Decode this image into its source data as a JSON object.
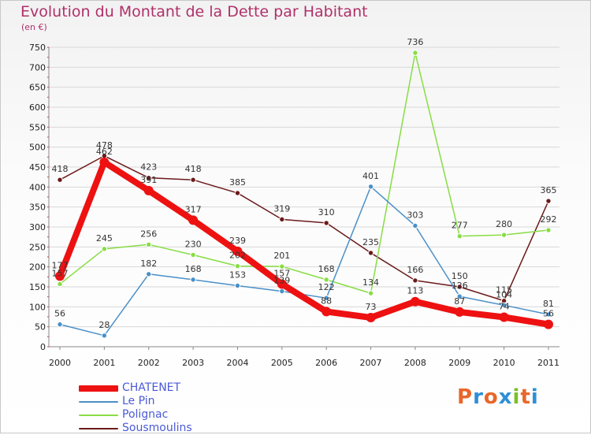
{
  "header": {
    "title": "Evolution du Montant de la Dette par Habitant",
    "subtitle": "(en €)"
  },
  "brand": {
    "text": "Proxiti",
    "colors": [
      "#e8672a",
      "#2d8fd6",
      "#e8672a",
      "#2d8fd6",
      "#7bbf2a",
      "#e8672a",
      "#2d8fd6"
    ]
  },
  "chart_data": {
    "type": "line",
    "title": "Evolution du Montant de la Dette par Habitant",
    "subtitle": "(en €)",
    "xlabel": "",
    "ylabel": "",
    "x": [
      "2000",
      "2001",
      "2002",
      "2003",
      "2004",
      "2005",
      "2006",
      "2007",
      "2008",
      "2009",
      "2010",
      "2011"
    ],
    "ylim": [
      0,
      750
    ],
    "yticks": [
      0,
      50,
      100,
      150,
      200,
      250,
      300,
      350,
      400,
      450,
      500,
      550,
      600,
      650,
      700,
      750
    ],
    "grid": true,
    "legend_position": "bottom-left",
    "series": [
      {
        "name": "CHATENET",
        "color": "#ee1111",
        "values": [
          177,
          462,
          391,
          317,
          239,
          157,
          88,
          73,
          113,
          87,
          74,
          56
        ]
      },
      {
        "name": "Le Pin",
        "color": "#4a90c8",
        "values": [
          56,
          28,
          182,
          168,
          153,
          139,
          122,
          401,
          303,
          126,
          104,
          81
        ]
      },
      {
        "name": "Polignac",
        "color": "#88dd44",
        "values": [
          157,
          245,
          256,
          230,
          202,
          201,
          168,
          134,
          736,
          277,
          280,
          292
        ]
      },
      {
        "name": "Sousmoulins",
        "color": "#6b1a1a",
        "values": [
          418,
          478,
          423,
          418,
          385,
          319,
          310,
          235,
          166,
          150,
          115,
          365
        ]
      }
    ]
  }
}
